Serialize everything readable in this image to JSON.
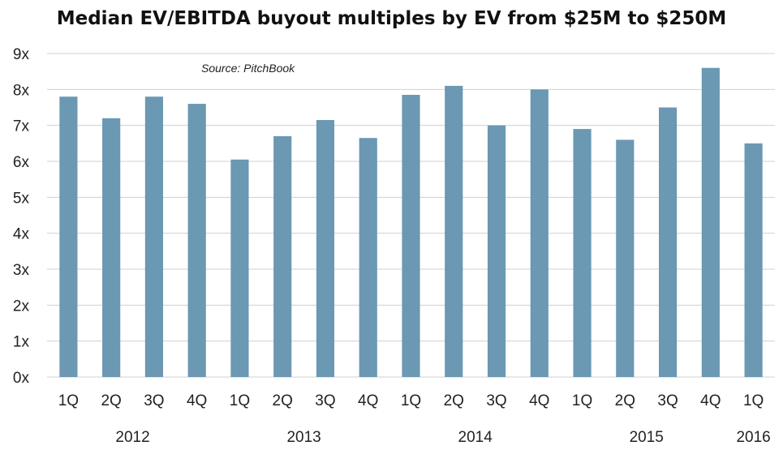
{
  "chart_data": {
    "type": "bar",
    "title": "Median EV/EBITDA buyout multiples by EV from $25M to $250M",
    "annotation": "Source: PitchBook",
    "xlabel": "",
    "ylabel": "",
    "ylim": [
      0,
      9
    ],
    "yticks": [
      "0x",
      "1x",
      "2x",
      "3x",
      "4x",
      "5x",
      "6x",
      "7x",
      "8x",
      "9x"
    ],
    "grid": true,
    "legend": "none",
    "bar_color": "#6b98b3",
    "grid_color": "#d0d0d0",
    "categories": [
      "1Q",
      "2Q",
      "3Q",
      "4Q",
      "1Q",
      "2Q",
      "3Q",
      "4Q",
      "1Q",
      "2Q",
      "3Q",
      "4Q",
      "1Q",
      "2Q",
      "3Q",
      "4Q",
      "1Q"
    ],
    "groups": [
      {
        "label": "2012",
        "count": 4
      },
      {
        "label": "2013",
        "count": 4
      },
      {
        "label": "2014",
        "count": 4
      },
      {
        "label": "2015",
        "count": 4
      },
      {
        "label": "2016",
        "count": 1
      }
    ],
    "values": [
      7.8,
      7.2,
      7.8,
      7.6,
      6.05,
      6.7,
      7.15,
      6.65,
      7.85,
      8.1,
      7.0,
      8.0,
      6.9,
      6.6,
      7.5,
      8.6,
      6.5
    ]
  }
}
